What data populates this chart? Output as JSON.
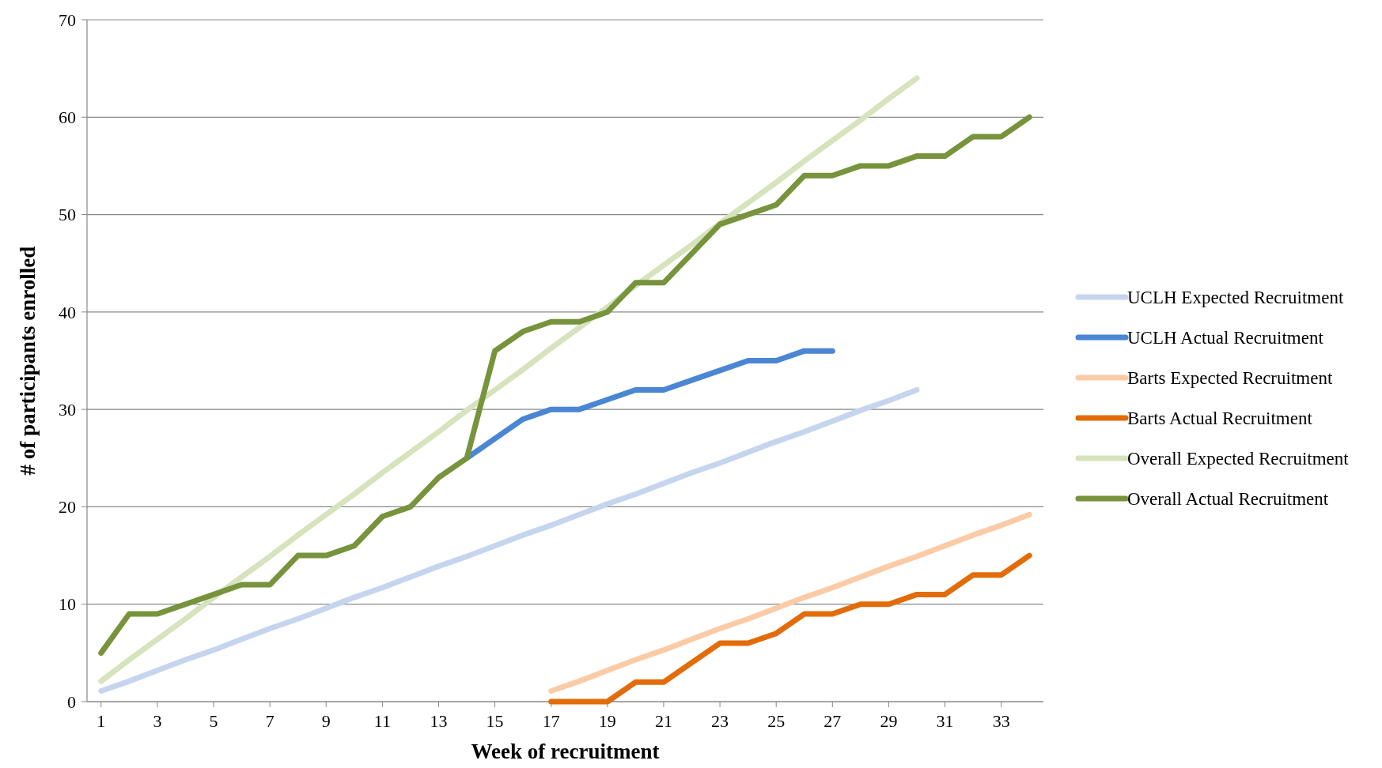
{
  "chart_data": {
    "type": "line",
    "xlabel": "Week of recruitment",
    "ylabel": "# of participants enrolled",
    "x": [
      1,
      2,
      3,
      4,
      5,
      6,
      7,
      8,
      9,
      10,
      11,
      12,
      13,
      14,
      15,
      16,
      17,
      18,
      19,
      20,
      21,
      22,
      23,
      24,
      25,
      26,
      27,
      28,
      29,
      30,
      31,
      32,
      33,
      34
    ],
    "xlim": [
      0.5,
      34.5
    ],
    "xticks": [
      1,
      3,
      5,
      7,
      9,
      11,
      13,
      15,
      17,
      19,
      21,
      23,
      25,
      27,
      29,
      31,
      33
    ],
    "ylim": [
      0,
      70
    ],
    "yticks": [
      0,
      10,
      20,
      30,
      40,
      50,
      60,
      70
    ],
    "grid": "y",
    "legend": "right",
    "marker": "none",
    "line_style": "solid",
    "series": [
      {
        "name": "UCLH Expected Recruitment",
        "color": "#c6d5ee",
        "values": [
          1.1,
          2.1,
          3.2,
          4.3,
          5.3,
          6.4,
          7.5,
          8.5,
          9.6,
          10.7,
          11.7,
          12.8,
          13.9,
          14.9,
          16,
          17.1,
          18.1,
          19.2,
          20.3,
          21.3,
          22.4,
          23.5,
          24.5,
          25.6,
          26.7,
          27.7,
          28.8,
          29.9,
          30.9,
          32,
          null,
          null,
          null,
          null
        ]
      },
      {
        "name": "UCLH Actual Recruitment",
        "color": "#4a86d4",
        "values": [
          null,
          null,
          null,
          null,
          null,
          null,
          null,
          null,
          null,
          null,
          null,
          null,
          null,
          25,
          27,
          29,
          30,
          30,
          31,
          32,
          32,
          33,
          34,
          35,
          35,
          36,
          36,
          null,
          null,
          null,
          null,
          null,
          null,
          null
        ]
      },
      {
        "name": "Barts Expected Recruitment",
        "color": "#fbcba6",
        "values": [
          null,
          null,
          null,
          null,
          null,
          null,
          null,
          null,
          null,
          null,
          null,
          null,
          null,
          null,
          null,
          null,
          1.1,
          2.1,
          3.2,
          4.3,
          5.3,
          6.4,
          7.5,
          8.5,
          9.6,
          10.7,
          11.7,
          12.8,
          13.9,
          14.9,
          16,
          17.1,
          18.1,
          19.2
        ]
      },
      {
        "name": "Barts Actual Recruitment",
        "color": "#e36c0a",
        "values": [
          null,
          null,
          null,
          null,
          null,
          null,
          null,
          null,
          null,
          null,
          null,
          null,
          null,
          null,
          null,
          null,
          0,
          0,
          0,
          2,
          2,
          4,
          6,
          6,
          7,
          9,
          9,
          10,
          10,
          11,
          11,
          13,
          13,
          15
        ]
      },
      {
        "name": "Overall Expected Recruitment",
        "color": "#d6e3bc",
        "values": [
          2.1,
          4.3,
          6.4,
          8.5,
          10.7,
          12.8,
          14.9,
          17.1,
          19.2,
          21.3,
          23.5,
          25.6,
          27.7,
          29.9,
          32,
          34.1,
          36.3,
          38.4,
          40.5,
          42.7,
          44.8,
          46.9,
          49.1,
          51.2,
          53.3,
          55.5,
          57.6,
          59.7,
          61.9,
          64,
          null,
          null,
          null,
          null
        ]
      },
      {
        "name": "Overall Actual Recruitment",
        "color": "#77933c",
        "values": [
          5,
          9,
          9,
          10,
          11,
          12,
          12,
          15,
          15,
          16,
          19,
          20,
          23,
          25,
          36,
          38,
          39,
          39,
          40,
          43,
          43,
          46,
          49,
          50,
          51,
          54,
          54,
          55,
          55,
          56,
          56,
          58,
          58,
          60
        ]
      }
    ]
  }
}
